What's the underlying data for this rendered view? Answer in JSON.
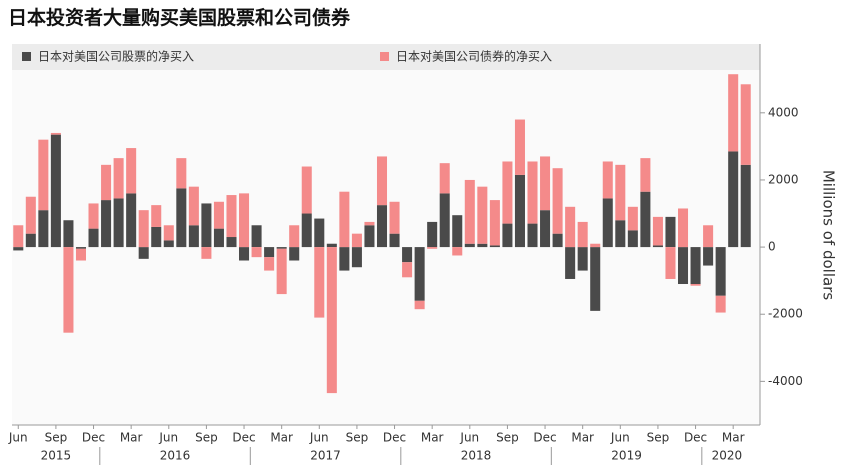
{
  "chart_data": {
    "type": "stacked_bar",
    "title": "日本投资者大量购买美国股票和公司债券",
    "y_label": "Millions of dollars",
    "categories": [
      "Jun",
      null,
      null,
      "Sep",
      null,
      null,
      "Dec",
      null,
      null,
      "Mar",
      null,
      null,
      "Jun",
      null,
      null,
      "Sep",
      null,
      null,
      "Dec",
      null,
      null,
      "Mar",
      null,
      null,
      "Jun",
      null,
      null,
      "Sep",
      null,
      null,
      "Dec",
      null,
      null,
      "Mar",
      null,
      null,
      "Jun",
      null,
      null,
      "Sep",
      null,
      null,
      "Dec",
      null,
      null,
      "Mar",
      null,
      null,
      "Jun",
      null,
      null,
      "Sep",
      null,
      null,
      "Dec",
      null,
      null,
      "Mar",
      null
    ],
    "x_groups": [
      "2015",
      "2016",
      "2017",
      "2018",
      "2019",
      "2020"
    ],
    "series": [
      {
        "name": "日本对美国公司股票的净买入",
        "color": "#4a4a4a",
        "values": [
          -100,
          400,
          1100,
          3350,
          800,
          -50,
          550,
          1400,
          1450,
          1600,
          -350,
          600,
          200,
          1750,
          650,
          1300,
          550,
          300,
          -400,
          650,
          -300,
          -50,
          -400,
          1000,
          850,
          100,
          -700,
          -600,
          650,
          1250,
          400,
          -450,
          -1600,
          750,
          1600,
          950,
          100,
          100,
          50,
          700,
          2150,
          700,
          1100,
          400,
          -950,
          -700,
          -1900,
          1450,
          800,
          500,
          1650,
          50,
          900,
          -1100,
          -1100,
          -550,
          -1450,
          2850,
          2450
        ]
      },
      {
        "name": "日本对美国公司债券的净买入",
        "color": "#f48a8a",
        "values": [
          650,
          1100,
          2100,
          50,
          -2550,
          -350,
          750,
          1050,
          1200,
          1350,
          1100,
          650,
          450,
          900,
          1150,
          -350,
          800,
          1250,
          1600,
          -300,
          -400,
          -1350,
          650,
          1400,
          -2100,
          -4350,
          1650,
          400,
          100,
          1450,
          950,
          -450,
          -250,
          -50,
          900,
          -250,
          1900,
          1700,
          1350,
          1850,
          1650,
          1850,
          1600,
          1950,
          1200,
          750,
          100,
          1100,
          1650,
          700,
          1000,
          850,
          -950,
          1150,
          -50,
          650,
          -500,
          2300,
          2400
        ]
      }
    ],
    "ylim": [
      -5300,
      6050
    ],
    "yticks": [
      -4000,
      -2000,
      0,
      2000,
      4000
    ],
    "grid": false
  }
}
